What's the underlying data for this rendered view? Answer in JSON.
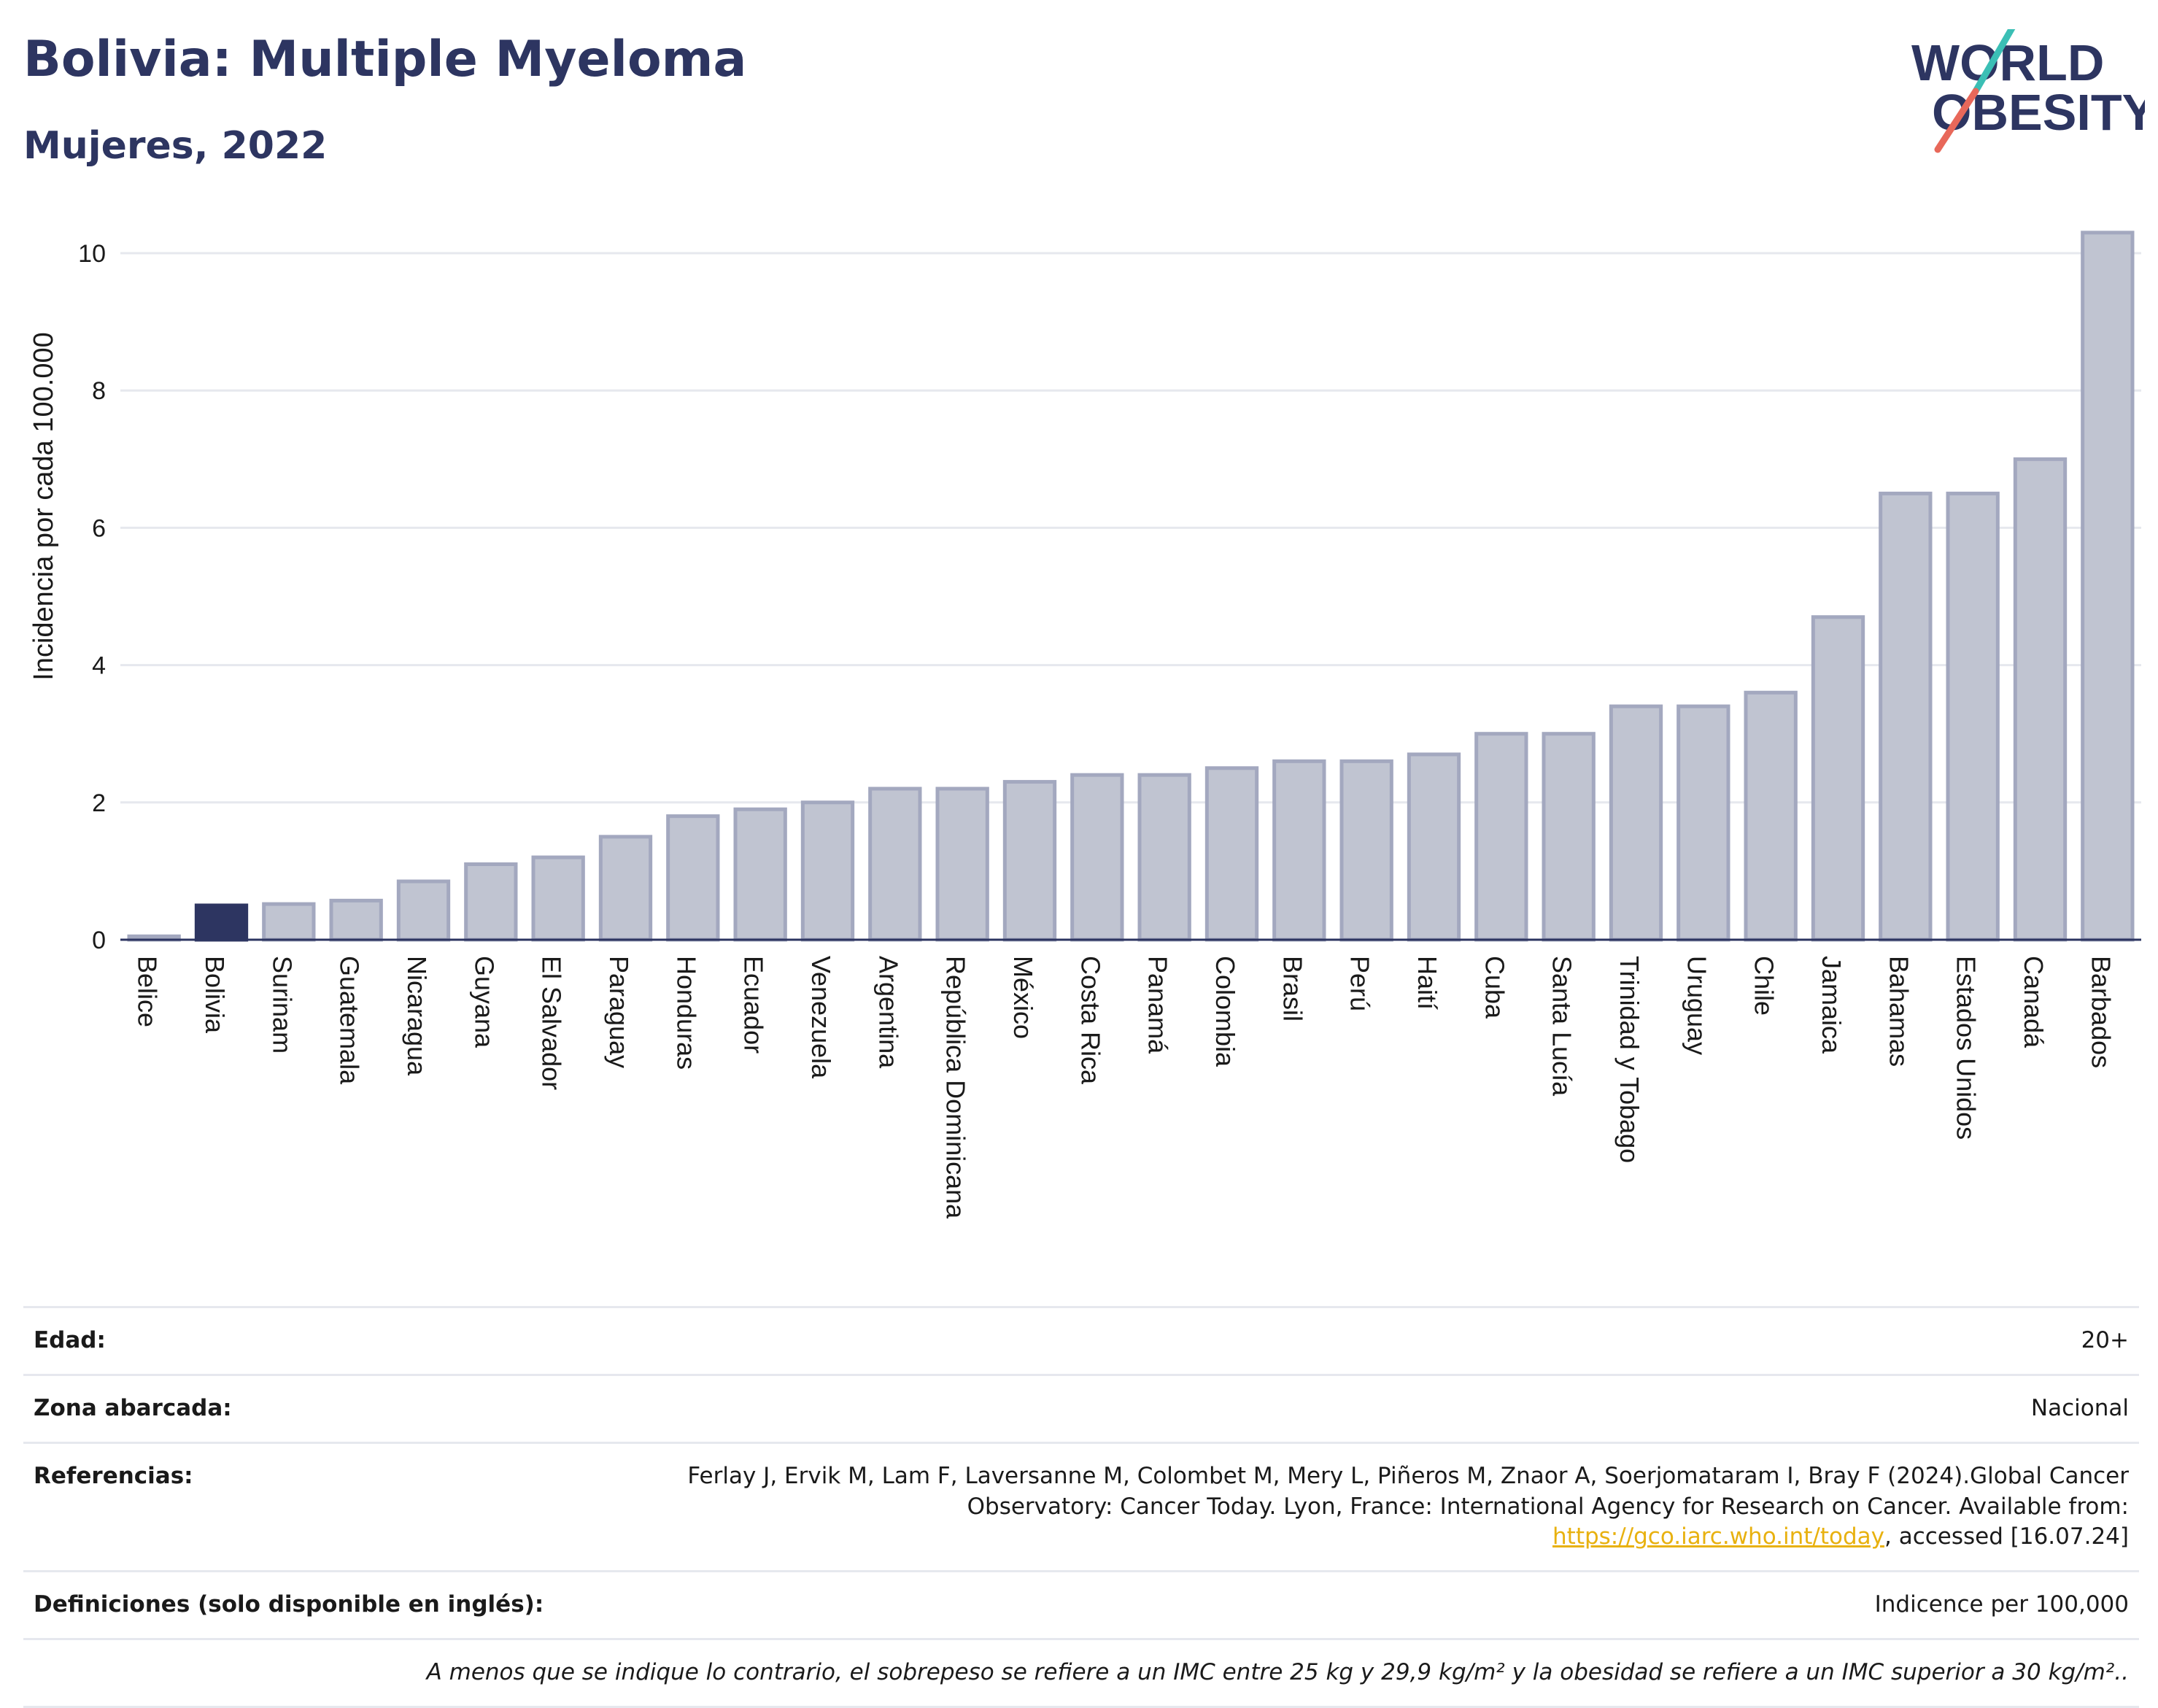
{
  "header": {
    "title": "Bolivia: Multiple Myeloma",
    "subtitle": "Mujeres, 2022",
    "logo_line1": "WORLD",
    "logo_line2": "OBESITY"
  },
  "colors": {
    "bar": "#c0c4d1",
    "bar_edge": "#a3a8bf",
    "highlight": "#2d3561",
    "title": "#2d3561",
    "grid": "#e6e8ee",
    "logo_teal": "#3bbfb5",
    "logo_coral": "#e8685a"
  },
  "chart_data": {
    "type": "bar",
    "ylabel": "Incidencia por cada 100.000",
    "ylim": [
      0,
      10.5
    ],
    "yticks": [
      0,
      2,
      4,
      6,
      8,
      10
    ],
    "grid": true,
    "highlight_category": "Bolivia",
    "categories": [
      "Belice",
      "Bolivia",
      "Surinam",
      "Guatemala",
      "Nicaragua",
      "Guyana",
      "El Salvador",
      "Paraguay",
      "Honduras",
      "Ecuador",
      "Venezuela",
      "Argentina",
      "República Dominicana",
      "México",
      "Costa Rica",
      "Panamá",
      "Colombia",
      "Brasil",
      "Perú",
      "Haití",
      "Cuba",
      "Santa Lucía",
      "Trinidad y Tobago",
      "Uruguay",
      "Chile",
      "Jamaica",
      "Bahamas",
      "Estados Unidos",
      "Canadá",
      "Barbados"
    ],
    "values": [
      0.05,
      0.5,
      0.52,
      0.57,
      0.85,
      1.1,
      1.2,
      1.5,
      1.8,
      1.9,
      2.0,
      2.2,
      2.2,
      2.3,
      2.4,
      2.4,
      2.5,
      2.6,
      2.6,
      2.7,
      3.0,
      3.0,
      3.4,
      3.4,
      3.6,
      4.7,
      6.5,
      6.5,
      7.0,
      10.3
    ]
  },
  "meta": {
    "age_label": "Edad:",
    "age_value": "20+",
    "zone_label": "Zona abarcada:",
    "zone_value": "Nacional",
    "refs_label": "Referencias:",
    "refs_text_1": "Ferlay J, Ervik M, Lam F, Laversanne M, Colombet M, Mery L, Piñeros M, Znaor A, Soerjomataram I, Bray F (2024).Global Cancer Observatory: Cancer Today. Lyon, France: International Agency for Research on Cancer. Available from: ",
    "refs_link": "https://gco.iarc.who.int/today",
    "refs_text_2": ", accessed [16.07.24]",
    "defs_label": "Definiciones (solo disponible en inglés):",
    "defs_value": "Indicence per 100,000",
    "note": "A menos que se indique lo contrario, el sobrepeso se refiere a un IMC entre 25 kg y 29,9 kg/m² y la obesidad se refiere a un IMC superior a 30 kg/m².."
  }
}
